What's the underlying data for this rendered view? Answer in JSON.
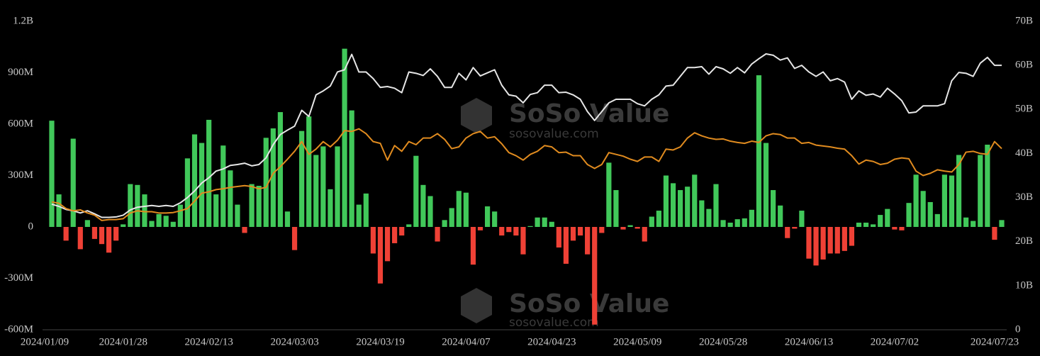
{
  "chart_data": {
    "type": "bar",
    "watermark": {
      "name": "SoSo Value",
      "url": "sosovalue.com"
    },
    "categories": [
      "2024/01/09",
      null,
      null,
      null,
      null,
      null,
      null,
      null,
      null,
      null,
      null,
      "2024/01/28",
      null,
      null,
      null,
      null,
      null,
      null,
      null,
      null,
      null,
      null,
      null,
      "2024/02/13",
      null,
      null,
      null,
      null,
      null,
      null,
      null,
      null,
      null,
      null,
      null,
      "2024/03/03",
      null,
      null,
      null,
      null,
      null,
      null,
      null,
      null,
      null,
      null,
      null,
      "2024/03/19",
      null,
      null,
      null,
      null,
      null,
      null,
      null,
      null,
      null,
      null,
      null,
      "2024/04/07",
      null,
      null,
      null,
      null,
      null,
      null,
      null,
      null,
      null,
      null,
      null,
      "2024/04/23",
      null,
      null,
      null,
      null,
      null,
      null,
      null,
      null,
      null,
      null,
      null,
      "2024/05/09",
      null,
      null,
      null,
      null,
      null,
      null,
      null,
      null,
      null,
      null,
      null,
      "2024/05/28",
      null,
      null,
      null,
      null,
      null,
      null,
      null,
      null,
      null,
      null,
      null,
      "2024/06/13",
      null,
      null,
      null,
      null,
      null,
      null,
      null,
      null,
      null,
      null,
      null,
      "2024/07/02",
      null,
      null,
      null,
      null,
      null,
      null,
      null,
      null,
      null,
      null,
      null,
      null,
      null,
      "2024/07/23"
    ],
    "series": [
      {
        "type": "bar",
        "color": "#41c85a",
        "negative_color": "#ef4136",
        "values": [
          620,
          190,
          -80,
          515,
          -130,
          40,
          -70,
          -100,
          -150,
          -80,
          15,
          250,
          245,
          190,
          35,
          75,
          65,
          30,
          130,
          400,
          540,
          490,
          625,
          190,
          475,
          330,
          130,
          -35,
          250,
          240,
          520,
          575,
          670,
          90,
          -135,
          560,
          645,
          420,
          470,
          220,
          470,
          1040,
          680,
          130,
          195,
          -155,
          -330,
          -200,
          -95,
          -50,
          15,
          415,
          245,
          180,
          -85,
          40,
          110,
          210,
          200,
          -220,
          -20,
          120,
          90,
          -50,
          -30,
          -50,
          -160,
          5,
          55,
          55,
          30,
          -120,
          -215,
          -80,
          -50,
          -160,
          -570,
          -35,
          375,
          215,
          -15,
          10,
          -10,
          -85,
          60,
          95,
          300,
          255,
          215,
          235,
          305,
          155,
          105,
          250,
          40,
          25,
          45,
          50,
          100,
          885,
          490,
          215,
          125,
          -65,
          -10,
          95,
          -185,
          -225,
          -190,
          -155,
          -155,
          -140,
          -110,
          25,
          25,
          15,
          70,
          105,
          -15,
          -20,
          140,
          305,
          210,
          145,
          75,
          305,
          300,
          420,
          55,
          35,
          420,
          480,
          -75,
          40
        ]
      },
      {
        "type": "line",
        "axis": "y2",
        "color": "#e6e6e6",
        "values": [
          28.5,
          28,
          27.3,
          27,
          26.5,
          27,
          26.3,
          25.5,
          25.5,
          25.6,
          26,
          27.2,
          27.8,
          28,
          28.2,
          28,
          28.2,
          28,
          28.8,
          30,
          31.5,
          33.3,
          34.5,
          36,
          36.5,
          37.3,
          37.5,
          37.8,
          37.2,
          37.5,
          39,
          42,
          44.3,
          45.3,
          46.2,
          49.8,
          48.4,
          53.3,
          54.2,
          55.3,
          58.5,
          59,
          62.5,
          58.5,
          58.5,
          57,
          55,
          55.2,
          54.8,
          53.8,
          58.5,
          58.2,
          57.7,
          59.2,
          57.5,
          55,
          55,
          58.2,
          56.7,
          59.5,
          57.6,
          58.3,
          59,
          55.5,
          53.3,
          53,
          51.5,
          53.4,
          53.8,
          55.5,
          55.5,
          53.8,
          53.9,
          53.3,
          52.3,
          49.5,
          47.5,
          49.5,
          51.5,
          52.3,
          52.3,
          52.3,
          51.3,
          50.8,
          52.3,
          53.3,
          55.3,
          55.5,
          57.5,
          59.5,
          59.5,
          59.7,
          58,
          59.7,
          59.2,
          58.2,
          59.5,
          58.3,
          60.3,
          61.5,
          62.6,
          62.3,
          61.2,
          61.7,
          59.3,
          60,
          58.5,
          57.5,
          58.5,
          56.5,
          57,
          56.2,
          52.3,
          54.2,
          53.2,
          53.5,
          52.8,
          54.8,
          53.5,
          52,
          49.2,
          49.4,
          50.8,
          50.8,
          50.8,
          51.3,
          56.5,
          58.4,
          58.2,
          57.5,
          60.5,
          61.8,
          60,
          60
        ]
      },
      {
        "type": "line",
        "axis": "y2",
        "color": "#e08b1f",
        "values": [
          29,
          28.7,
          27.5,
          27,
          27.2,
          26.5,
          26,
          24.8,
          25,
          25,
          25.2,
          26.5,
          27,
          26.8,
          26.8,
          26.5,
          26.5,
          26.6,
          27,
          27.5,
          29.2,
          31,
          31.3,
          31.8,
          32,
          32.3,
          32.5,
          32.7,
          32.5,
          32,
          32.3,
          35.5,
          37,
          38.7,
          40.5,
          42.7,
          39.8,
          41,
          42.7,
          41.5,
          43,
          45.2,
          45,
          45.6,
          44.5,
          42.7,
          42.3,
          38.5,
          41.8,
          40.5,
          42.7,
          42,
          43.5,
          43.5,
          44.5,
          43.2,
          41.1,
          41.5,
          43.5,
          44.5,
          45,
          43.5,
          43.8,
          42.2,
          40.2,
          39.5,
          38.5,
          39.8,
          40.5,
          41.8,
          41.5,
          40.2,
          40.3,
          39.5,
          39.5,
          37.5,
          36.6,
          37.5,
          40.2,
          39.8,
          39.4,
          38.7,
          38.2,
          39.2,
          39.2,
          38.2,
          41,
          40.8,
          41.5,
          43.5,
          44.7,
          44,
          43.5,
          43.2,
          43.3,
          42.8,
          42.5,
          42.3,
          42.8,
          42.5,
          44,
          44.5,
          44.3,
          43.5,
          43.5,
          42.3,
          42.5,
          41.9,
          41.7,
          41.5,
          41.2,
          41,
          39.5,
          37.6,
          38.5,
          38.2,
          37.5,
          37.8,
          38.7,
          39,
          38.8,
          36,
          35,
          35.5,
          36.3,
          36,
          35.8,
          37.5,
          40.3,
          40.5,
          40,
          39.8,
          42.7,
          41.1
        ]
      }
    ],
    "ylim": [
      -600,
      1200
    ],
    "yticks": [
      {
        "value": -600,
        "label": "-600M"
      },
      {
        "value": -300,
        "label": "-300M"
      },
      0,
      {
        "value": 300,
        "label": "300M"
      },
      {
        "value": 600,
        "label": "600M"
      },
      {
        "value": 900,
        "label": "900M"
      },
      {
        "value": 1200,
        "label": "1.2B"
      }
    ],
    "y2lim": [
      0,
      70
    ],
    "y2ticks": [
      0,
      {
        "value": 10,
        "label": "10B"
      },
      {
        "value": 20,
        "label": "20B"
      },
      {
        "value": 30,
        "label": "30B"
      },
      {
        "value": 40,
        "label": "40B"
      },
      {
        "value": 50,
        "label": "50B"
      },
      {
        "value": 60,
        "label": "60B"
      },
      {
        "value": 70,
        "label": "70B"
      }
    ],
    "grid": false
  }
}
